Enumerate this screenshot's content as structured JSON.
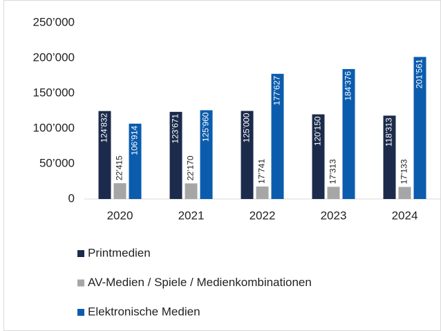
{
  "chart_data": {
    "type": "bar",
    "categories": [
      "2020",
      "2021",
      "2022",
      "2023",
      "2024"
    ],
    "series": [
      {
        "name": "Printmedien",
        "color": "#1c2b4b",
        "values": [
          124832,
          123671,
          125000,
          120150,
          118313
        ],
        "value_labels": [
          "124’832",
          "123’671",
          "125’000",
          "120’150",
          "118’313"
        ]
      },
      {
        "name": "AV-Medien / Spiele / Medienkombinationen",
        "color": "#a6a6a6",
        "values": [
          22415,
          22170,
          17741,
          17313,
          17133
        ],
        "value_labels": [
          "22’415",
          "22’170",
          "17’741",
          "17’313",
          "17’133"
        ]
      },
      {
        "name": "Elektronische Medien",
        "color": "#0b5cad",
        "values": [
          106914,
          125960,
          177627,
          184376,
          201561
        ],
        "value_labels": [
          "106’914",
          "125’960",
          "177’627",
          "184’376",
          "201’561"
        ]
      }
    ],
    "ylim": [
      0,
      250000
    ],
    "yticks": [
      0,
      {
        "value": 50000,
        "label": "50’000"
      },
      {
        "value": 100000,
        "label": "100’000"
      },
      {
        "value": 150000,
        "label": "150’000"
      },
      {
        "value": 200000,
        "label": "200’000"
      },
      {
        "value": 250000,
        "label": "250’000"
      }
    ],
    "grid": false
  }
}
